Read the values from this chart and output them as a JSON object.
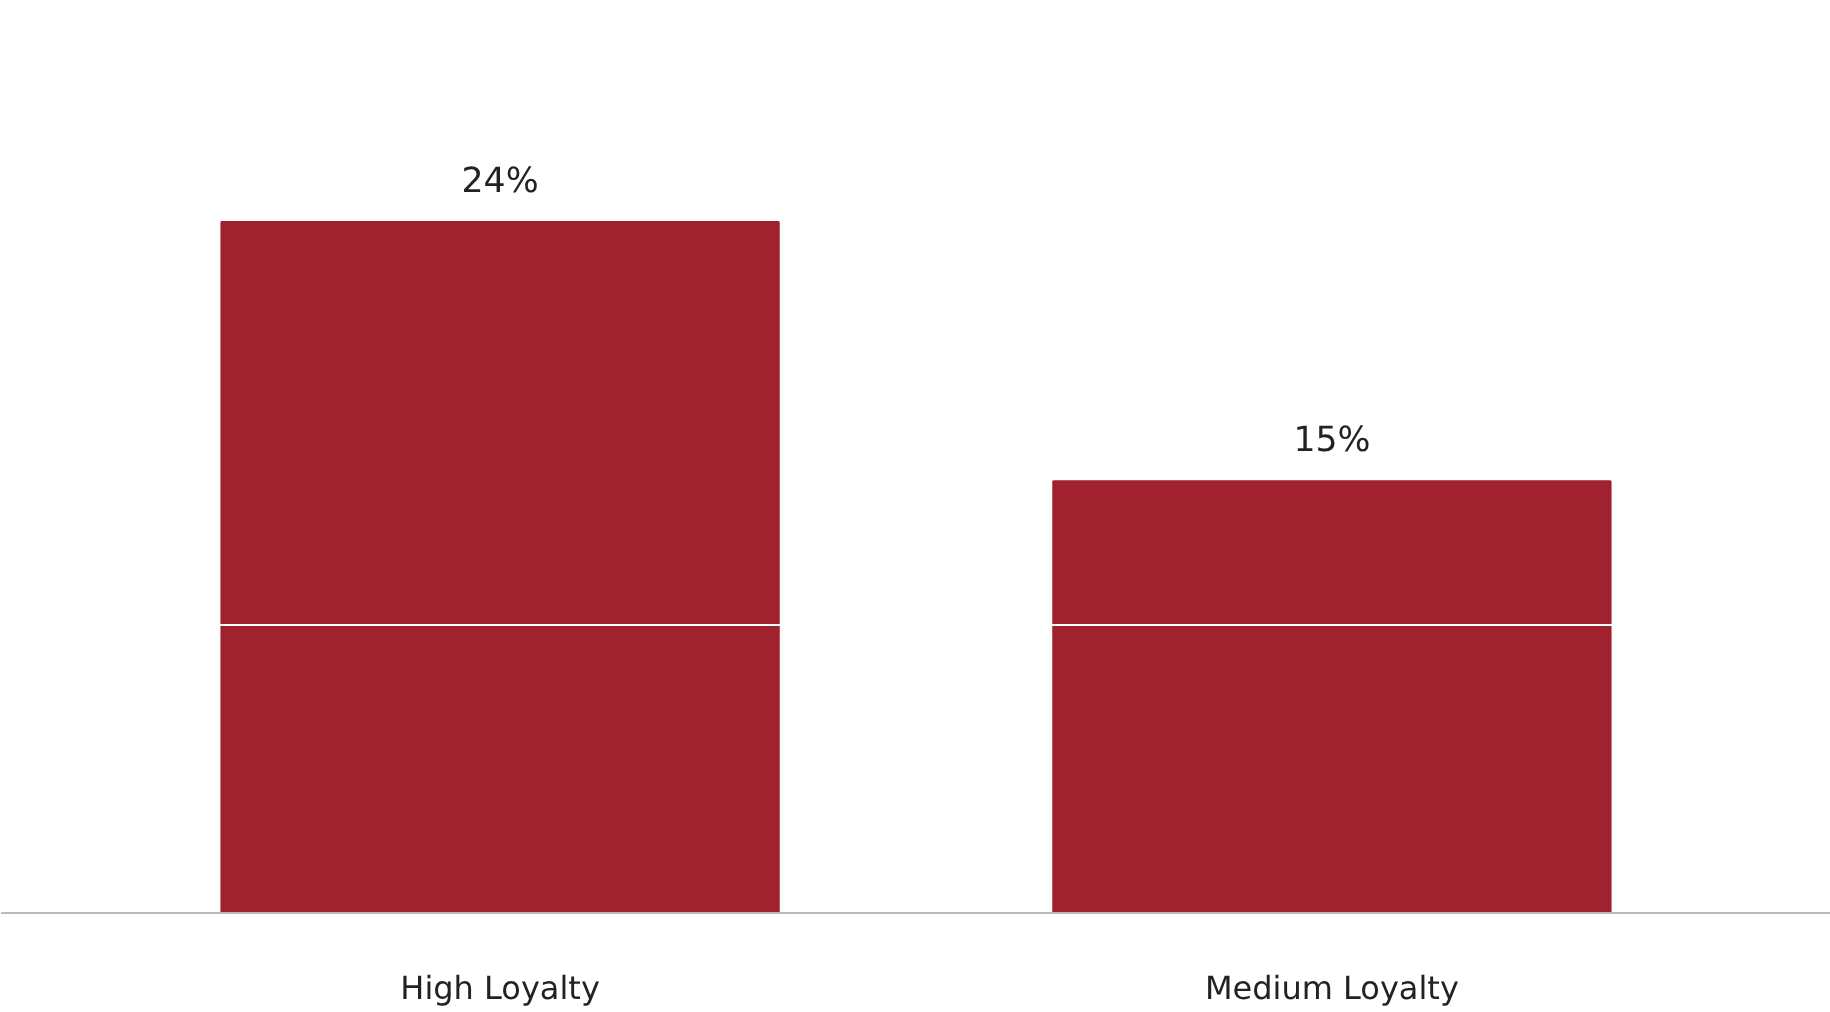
{
  "chart_data": {
    "type": "bar",
    "categories": [
      "High Loyalty",
      "Medium Loyalty"
    ],
    "values": [
      24,
      15
    ],
    "value_labels": [
      "24%",
      "15%"
    ],
    "color": "#a0222e",
    "ref_lines": [
      {
        "axis": "y",
        "value": 10,
        "color": "#ffffff"
      }
    ],
    "grid": false
  }
}
